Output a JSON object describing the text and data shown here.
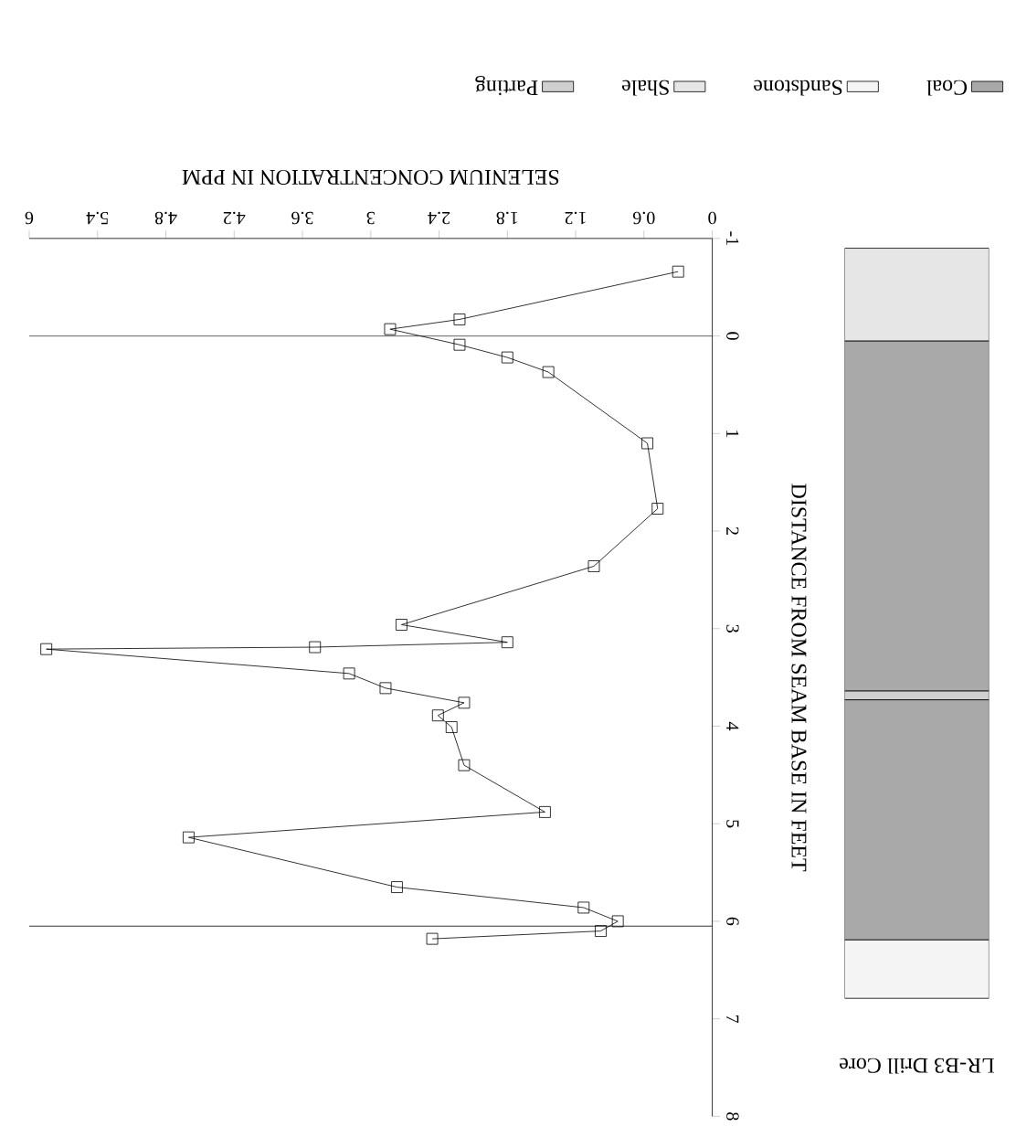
{
  "chart_data": [
    {
      "type": "line",
      "xlabel": "SELENIUM CONCENTRATION IN PPM",
      "ylabel": "DISTANCE FROM SEAM BASE IN FEET",
      "xlim": [
        6,
        0
      ],
      "ylim": [
        8,
        -1
      ],
      "xticks": [
        0,
        0.6,
        1.2,
        1.8,
        2.4,
        3,
        3.6,
        4.2,
        4.8,
        5.4,
        6
      ],
      "yticks": [
        -1,
        0,
        1,
        2,
        3,
        4,
        5,
        6,
        7,
        8
      ],
      "marker": "square",
      "series": [
        {
          "color": "#000000",
          "x": [
            0.3,
            2.22,
            2.83,
            2.22,
            1.8,
            1.44,
            0.57,
            0.48,
            1.04,
            2.73,
            1.8,
            3.49,
            5.85,
            3.19,
            2.87,
            2.18,
            2.41,
            2.29,
            2.18,
            1.47,
            4.6,
            2.77,
            1.13,
            0.83,
            0.98,
            2.46
          ],
          "values": [
            -0.66,
            -0.17,
            -0.07,
            0.09,
            0.22,
            0.37,
            1.1,
            1.77,
            2.36,
            2.96,
            3.14,
            3.19,
            3.21,
            3.46,
            3.61,
            3.76,
            3.89,
            4.01,
            4.4,
            4.88,
            5.14,
            5.65,
            5.86,
            6.0,
            6.1,
            6.18
          ]
        }
      ],
      "ref_lines": [
        {
          "axis": "y",
          "value": 0
        },
        {
          "axis": "y",
          "value": 6.05
        }
      ]
    },
    {
      "type": "bar",
      "title": "LR-B3 Drill Core",
      "categories": [
        null
      ],
      "ylim": [
        8,
        -1
      ],
      "tick_labels": false,
      "legend": "top",
      "series": [
        {
          "name": "Coal",
          "color": "#a9a9a9",
          "base": [
            0.05
          ],
          "values": [
            3.59
          ]
        },
        {
          "name": "Sandstone",
          "color": "#f4f4f4",
          "base": [
            6.19
          ],
          "values": [
            0.6
          ]
        },
        {
          "name": "Shale",
          "color": "#e6e6e6",
          "base": [
            -0.9
          ],
          "values": [
            0.95
          ]
        },
        {
          "name": "Parting",
          "color": "#cfcfcf",
          "base": [
            3.64
          ],
          "values": [
            0.09
          ]
        },
        {
          "color": "#a9a9a9",
          "base": [
            3.73
          ],
          "values": [
            2.46
          ]
        }
      ]
    }
  ]
}
